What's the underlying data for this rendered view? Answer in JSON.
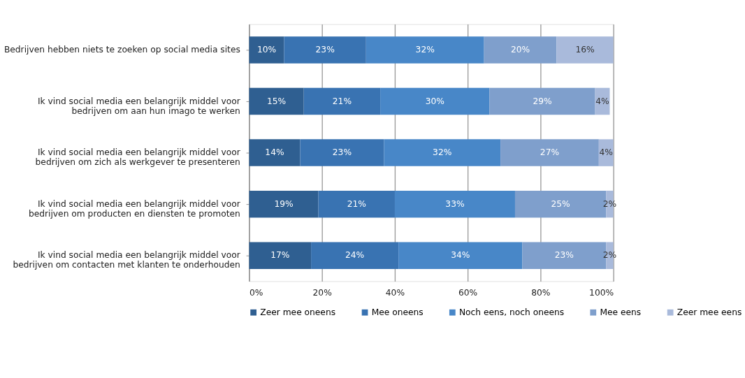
{
  "chart_data": {
    "type": "bar",
    "orientation": "horizontal",
    "stacked": true,
    "categories": [
      "Bedrijven hebben niets te zoeken op social media sites",
      "Ik vind social media een belangrijk middel voor bedrijven om aan hun imago te werken",
      "Ik vind social media een belangrijk middel voor bedrijven om zich als werkgever te presenteren",
      "Ik vind social media een belangrijk middel voor bedrijven om producten en diensten te promoten",
      "Ik vind social media een belangrijk middel voor bedrijven om contacten met klanten te onderhouden"
    ],
    "series": [
      {
        "name": "Zeer mee oneens",
        "color": "#2f5f91",
        "values": [
          9.6,
          15,
          14,
          19,
          17
        ],
        "value_labels": [
          "10%",
          "15%",
          "14%",
          "19%",
          "17%"
        ]
      },
      {
        "name": "Mee oneens",
        "color": "#3973b2",
        "values": [
          22.5,
          21,
          23,
          21,
          24
        ],
        "value_labels": [
          "23%",
          "21%",
          "23%",
          "21%",
          "24%"
        ]
      },
      {
        "name": "Noch eens, noch oneens",
        "color": "#4887c8",
        "values": [
          32.4,
          30,
          32,
          33,
          34
        ],
        "value_labels": [
          "32%",
          "30%",
          "32%",
          "33%",
          "34%"
        ]
      },
      {
        "name": "Mee eens",
        "color": "#7f9fcc",
        "values": [
          19.9,
          29,
          27,
          25,
          23
        ],
        "value_labels": [
          "20%",
          "29%",
          "27%",
          "25%",
          "23%"
        ]
      },
      {
        "name": "Zeer mee eens",
        "color": "#a9badb",
        "values": [
          15.6,
          4,
          4,
          2,
          2
        ],
        "value_labels": [
          "16%",
          "4%",
          "4%",
          "2%",
          "2%"
        ]
      }
    ],
    "xlim": [
      0,
      100
    ],
    "xticks": [
      {
        "value": 0,
        "label": "0%"
      },
      {
        "value": 20,
        "label": "20%"
      },
      {
        "value": 40,
        "label": "40%"
      },
      {
        "value": 60,
        "label": "60%"
      },
      {
        "value": 80,
        "label": "80%"
      },
      {
        "value": 100,
        "label": "100%"
      }
    ],
    "grid": "x",
    "legend": "bottom"
  }
}
